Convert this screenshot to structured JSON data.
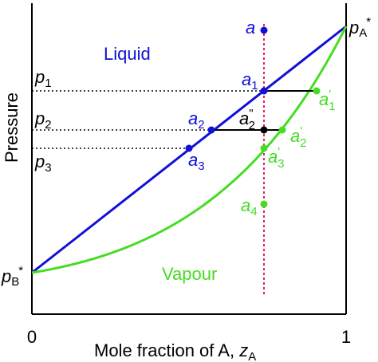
{
  "axes": {
    "y_label": "Pressure",
    "x_label": "Mole fraction of A, ",
    "x_symbol": "z",
    "x_subscript": "A",
    "x_ticks": [
      "0",
      "1"
    ]
  },
  "pressure_labels": [
    {
      "symbol": "p",
      "subscript": "1"
    },
    {
      "symbol": "p",
      "subscript": "2"
    },
    {
      "symbol": "p",
      "subscript": "3"
    }
  ],
  "pure_component_pressures": {
    "A": {
      "symbol": "p",
      "subscript": "A",
      "superscript": "*"
    },
    "B": {
      "symbol": "p",
      "subscript": "B",
      "superscript": "*"
    }
  },
  "regions": {
    "liquid": "Liquid",
    "vapour": "Vapour"
  },
  "points": {
    "a": {
      "symbol": "a",
      "subscript": "",
      "prime": ""
    },
    "a1": {
      "symbol": "a",
      "subscript": "1",
      "prime": ""
    },
    "a1p": {
      "symbol": "a",
      "subscript": "1",
      "prime": "'"
    },
    "a2": {
      "symbol": "a",
      "subscript": "2",
      "prime": ""
    },
    "a2p": {
      "symbol": "a",
      "subscript": "2",
      "prime": "'"
    },
    "a2pp": {
      "symbol": "a",
      "subscript": "2",
      "prime": "\""
    },
    "a3": {
      "symbol": "a",
      "subscript": "3",
      "prime": ""
    },
    "a3p": {
      "symbol": "a",
      "subscript": "3",
      "prime": "'"
    },
    "a4": {
      "symbol": "a",
      "subscript": "4",
      "prime": ""
    }
  },
  "colors": {
    "liquid_line": "#1010d8",
    "vapour_curve": "#44dd22",
    "isopleth": "#e0205a",
    "axes": "#000000"
  }
}
